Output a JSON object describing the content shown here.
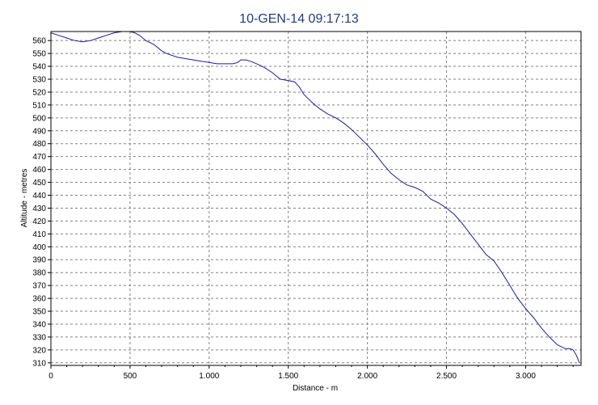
{
  "chart_data": {
    "type": "line",
    "title": "10-GEN-14 09:17:13",
    "xlabel": "Distance - m",
    "ylabel": "Altitude - metres",
    "xlim": [
      0,
      3350
    ],
    "ylim": [
      308,
      567
    ],
    "x_ticks": [
      {
        "value": 0,
        "label": "0"
      },
      {
        "value": 500,
        "label": "500"
      },
      {
        "value": 1000,
        "label": "1.000"
      },
      {
        "value": 1500,
        "label": "1.500"
      },
      {
        "value": 2000,
        "label": "2.000"
      },
      {
        "value": 2500,
        "label": "2.500"
      },
      {
        "value": 3000,
        "label": "3.000"
      }
    ],
    "y_ticks": [
      310,
      320,
      330,
      340,
      350,
      360,
      370,
      380,
      390,
      400,
      410,
      420,
      430,
      440,
      450,
      460,
      470,
      480,
      490,
      500,
      510,
      520,
      530,
      540,
      550,
      560
    ],
    "grid": true,
    "colors": {
      "series": "#1a1aa6",
      "title": "#1f3a8a",
      "grid": "#808080"
    },
    "series": [
      {
        "x": [
          0,
          50,
          100,
          150,
          200,
          250,
          300,
          350,
          400,
          450,
          500,
          530,
          560,
          600,
          650,
          700,
          730,
          800,
          850,
          900,
          950,
          1000,
          1050,
          1100,
          1150,
          1180,
          1200,
          1230,
          1260,
          1300,
          1350,
          1400,
          1450,
          1500,
          1540,
          1570,
          1600,
          1650,
          1700,
          1750,
          1800,
          1850,
          1900,
          1950,
          2000,
          2050,
          2100,
          2150,
          2200,
          2250,
          2300,
          2350,
          2400,
          2450,
          2500,
          2550,
          2600,
          2650,
          2700,
          2750,
          2800,
          2850,
          2900,
          2950,
          3000,
          3050,
          3100,
          3150,
          3200,
          3250,
          3280,
          3300,
          3320,
          3340
        ],
        "y": [
          566,
          564,
          562,
          560,
          559,
          560,
          562,
          564,
          566,
          567,
          567,
          566,
          564,
          560,
          557,
          552,
          550,
          547,
          546,
          545,
          544,
          543,
          542,
          542,
          542,
          543,
          545,
          545,
          544,
          542,
          539,
          535,
          530,
          529,
          528,
          524,
          518,
          512,
          507,
          503,
          500,
          496,
          491,
          485,
          479,
          472,
          464,
          457,
          452,
          448,
          446,
          443,
          437,
          434,
          430,
          425,
          418,
          410,
          402,
          394,
          389,
          380,
          370,
          360,
          352,
          345,
          337,
          330,
          324,
          321,
          321,
          320,
          316,
          310
        ]
      }
    ]
  }
}
